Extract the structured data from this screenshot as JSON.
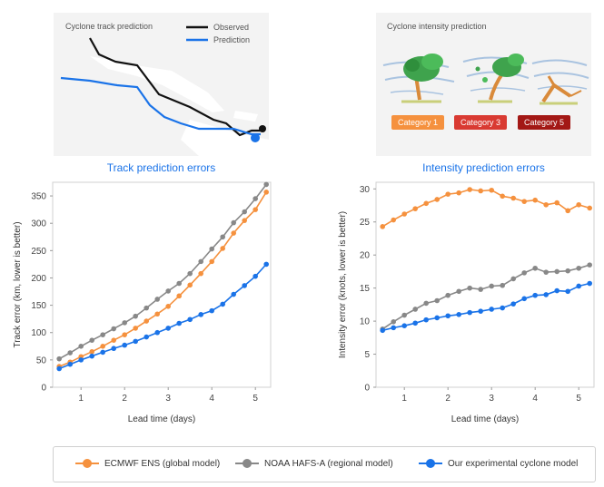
{
  "track_panel": {
    "title": "Cyclone track prediction",
    "legend_observed": "Observed",
    "legend_prediction": "Prediction"
  },
  "intensity_panel": {
    "title": "Cyclone intensity prediction",
    "categories": [
      {
        "label": "Category 1",
        "color": "#f5913e"
      },
      {
        "label": "Category 3",
        "color": "#d93a32"
      },
      {
        "label": "Category 5",
        "color": "#a31815"
      }
    ]
  },
  "colors": {
    "ecmwf": "#f5913e",
    "noaa": "#888888",
    "ours": "#1a73e8",
    "observed": "#111111"
  },
  "legend": {
    "ecmwf": "ECMWF ENS (global model)",
    "noaa": "NOAA HAFS-A (regional model)",
    "ours": "Our experimental cyclone model"
  },
  "chart_data": [
    {
      "type": "line",
      "title": "Track prediction errors",
      "xlabel": "Lead time (days)",
      "ylabel": "Track error (km, lower is better)",
      "xlim": [
        0.35,
        5.35
      ],
      "ylim": [
        0,
        375
      ],
      "xticks": [
        1,
        2,
        3,
        4,
        5
      ],
      "yticks": [
        0,
        50,
        100,
        150,
        200,
        250,
        300,
        350
      ],
      "x": [
        0.5,
        0.75,
        1.0,
        1.25,
        1.5,
        1.75,
        2.0,
        2.25,
        2.5,
        2.75,
        3.0,
        3.25,
        3.5,
        3.75,
        4.0,
        4.25,
        4.5,
        4.75,
        5.0,
        5.25
      ],
      "series": [
        {
          "name": "ECMWF ENS (global model)",
          "key": "ecmwf",
          "values": [
            38,
            46,
            56,
            65,
            75,
            86,
            96,
            108,
            121,
            134,
            148,
            167,
            187,
            208,
            230,
            254,
            282,
            305,
            325,
            357
          ]
        },
        {
          "name": "NOAA HAFS-A (regional model)",
          "key": "noaa",
          "values": [
            52,
            63,
            75,
            86,
            96,
            107,
            118,
            130,
            145,
            161,
            176,
            190,
            208,
            230,
            253,
            275,
            301,
            321,
            345,
            371
          ]
        },
        {
          "name": "Our experimental cyclone model",
          "key": "ours",
          "values": [
            34,
            42,
            50,
            57,
            64,
            71,
            77,
            84,
            92,
            100,
            108,
            117,
            124,
            133,
            140,
            152,
            170,
            186,
            203,
            225
          ]
        }
      ]
    },
    {
      "type": "line",
      "title": "Intensity prediction errors",
      "xlabel": "Lead time (days)",
      "ylabel": "Intensity error (knots, lower is better)",
      "xlim": [
        0.35,
        5.35
      ],
      "ylim": [
        0,
        31
      ],
      "xticks": [
        1,
        2,
        3,
        4,
        5
      ],
      "yticks": [
        0,
        5,
        10,
        15,
        20,
        25,
        30
      ],
      "x": [
        0.5,
        0.75,
        1.0,
        1.25,
        1.5,
        1.75,
        2.0,
        2.25,
        2.5,
        2.75,
        3.0,
        3.25,
        3.5,
        3.75,
        4.0,
        4.25,
        4.5,
        4.75,
        5.0,
        5.25
      ],
      "series": [
        {
          "name": "ECMWF ENS (global model)",
          "key": "ecmwf",
          "values": [
            24.3,
            25.3,
            26.2,
            27.0,
            27.8,
            28.4,
            29.2,
            29.4,
            29.9,
            29.7,
            29.8,
            28.9,
            28.6,
            28.1,
            28.3,
            27.6,
            27.9,
            26.7,
            27.6,
            27.1
          ]
        },
        {
          "name": "NOAA HAFS-A (regional model)",
          "key": "noaa",
          "values": [
            8.8,
            9.9,
            10.9,
            11.8,
            12.7,
            13.1,
            13.9,
            14.5,
            15.0,
            14.8,
            15.3,
            15.4,
            16.4,
            17.3,
            18.0,
            17.4,
            17.5,
            17.6,
            18.0,
            18.5
          ]
        },
        {
          "name": "Our experimental cyclone model",
          "key": "ours",
          "values": [
            8.6,
            9.0,
            9.3,
            9.7,
            10.2,
            10.5,
            10.8,
            11.0,
            11.3,
            11.5,
            11.8,
            12.0,
            12.6,
            13.4,
            13.9,
            14.0,
            14.6,
            14.5,
            15.3,
            15.7
          ]
        }
      ]
    }
  ]
}
